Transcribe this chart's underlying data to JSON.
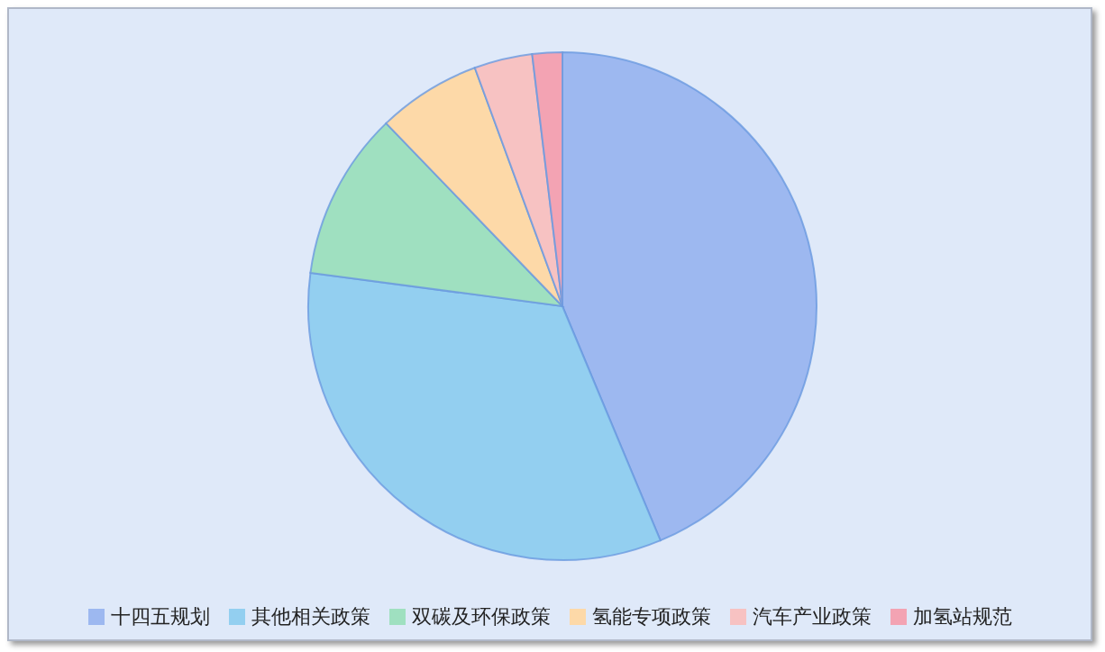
{
  "chart_data": {
    "type": "pie",
    "categories": [
      "十四五规划",
      "其他相关政策",
      "双碳及环保政策",
      "氢能专项政策",
      "汽车产业政策",
      "加氢站规范"
    ],
    "values": [
      43.7,
      33.4,
      10.7,
      6.6,
      3.7,
      1.9
    ],
    "colors": [
      "#9db8f0",
      "#93cff0",
      "#9fe0c0",
      "#fdd9a8",
      "#f7c2c2",
      "#f3a3b3"
    ],
    "legend": "bottom"
  }
}
